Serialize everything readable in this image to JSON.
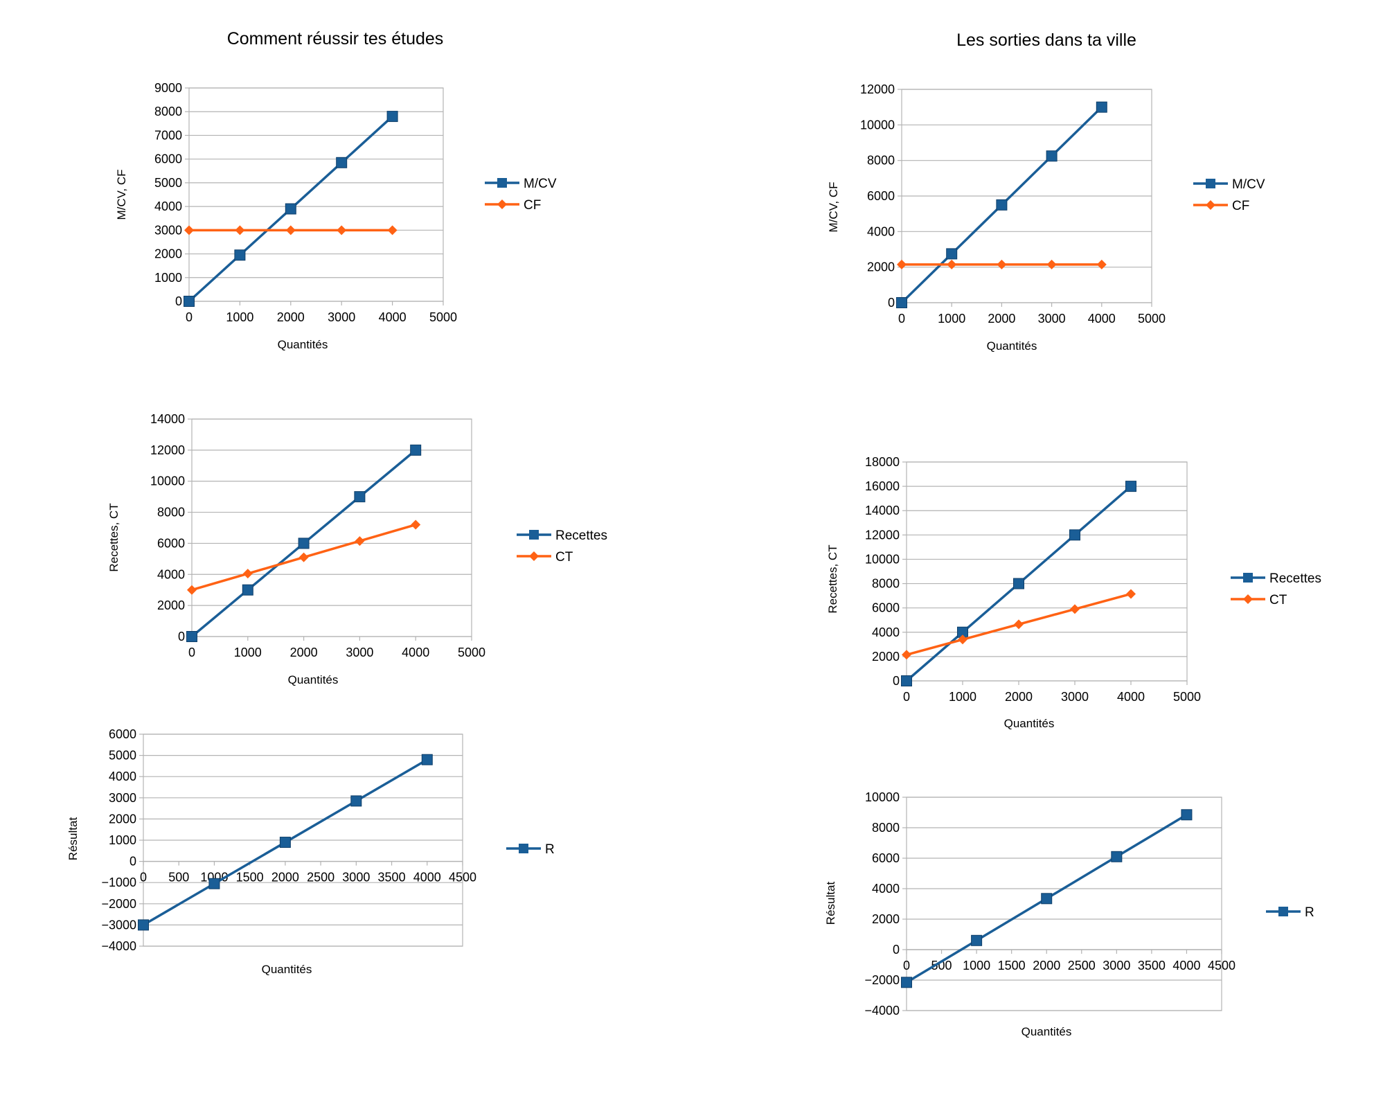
{
  "titles": {
    "left": "Comment réussir tes études",
    "right": "Les sorties dans ta ville"
  },
  "colors": {
    "blue": "#1a5e97",
    "orange": "#ff6214",
    "grid": "#b3b3b3"
  },
  "chart_data": [
    {
      "type": "line",
      "title": "",
      "xlabel": "Quantités",
      "ylabel": "M/CV, CF",
      "xlim": [
        0,
        5000
      ],
      "ylim": [
        0,
        9000
      ],
      "x_ticks": [
        0,
        1000,
        2000,
        3000,
        4000,
        5000
      ],
      "y_ticks": [
        0,
        1000,
        2000,
        3000,
        4000,
        5000,
        6000,
        7000,
        8000,
        9000
      ],
      "grid": true,
      "legend_position": "right",
      "x": [
        0,
        1000,
        2000,
        3000,
        4000
      ],
      "series": [
        {
          "name": "M/CV",
          "values": [
            0,
            1950,
            3900,
            5850,
            7800
          ],
          "color": "#1a5e97",
          "marker": "square"
        },
        {
          "name": "CF",
          "values": [
            3000,
            3000,
            3000,
            3000,
            3000
          ],
          "color": "#ff6214",
          "marker": "diamond"
        }
      ]
    },
    {
      "type": "line",
      "title": "",
      "xlabel": "Quantités",
      "ylabel": "M/CV, CF",
      "xlim": [
        0,
        5000
      ],
      "ylim": [
        0,
        12000
      ],
      "x_ticks": [
        0,
        1000,
        2000,
        3000,
        4000,
        5000
      ],
      "y_ticks": [
        0,
        2000,
        4000,
        6000,
        8000,
        10000,
        12000
      ],
      "grid": true,
      "legend_position": "right",
      "x": [
        0,
        1000,
        2000,
        3000,
        4000
      ],
      "series": [
        {
          "name": "M/CV",
          "values": [
            0,
            2750,
            5500,
            8250,
            11000
          ],
          "color": "#1a5e97",
          "marker": "square"
        },
        {
          "name": "CF",
          "values": [
            2150,
            2150,
            2150,
            2150,
            2150
          ],
          "color": "#ff6214",
          "marker": "diamond"
        }
      ]
    },
    {
      "type": "line",
      "title": "",
      "xlabel": "Quantités",
      "ylabel": "Recettes, CT",
      "xlim": [
        0,
        5000
      ],
      "ylim": [
        0,
        14000
      ],
      "x_ticks": [
        0,
        1000,
        2000,
        3000,
        4000,
        5000
      ],
      "y_ticks": [
        0,
        2000,
        4000,
        6000,
        8000,
        10000,
        12000,
        14000
      ],
      "grid": true,
      "legend_position": "right",
      "x": [
        0,
        1000,
        2000,
        3000,
        4000
      ],
      "series": [
        {
          "name": "Recettes",
          "values": [
            0,
            3000,
            6000,
            9000,
            12000
          ],
          "color": "#1a5e97",
          "marker": "square"
        },
        {
          "name": "CT",
          "values": [
            3000,
            4050,
            5100,
            6150,
            7200
          ],
          "color": "#ff6214",
          "marker": "diamond"
        }
      ]
    },
    {
      "type": "line",
      "title": "",
      "xlabel": "Quantités",
      "ylabel": "Recettes, CT",
      "xlim": [
        0,
        5000
      ],
      "ylim": [
        0,
        18000
      ],
      "x_ticks": [
        0,
        1000,
        2000,
        3000,
        4000,
        5000
      ],
      "y_ticks": [
        0,
        2000,
        4000,
        6000,
        8000,
        10000,
        12000,
        14000,
        16000,
        18000
      ],
      "grid": true,
      "legend_position": "right",
      "x": [
        0,
        1000,
        2000,
        3000,
        4000
      ],
      "series": [
        {
          "name": "Recettes",
          "values": [
            0,
            4000,
            8000,
            12000,
            16000
          ],
          "color": "#1a5e97",
          "marker": "square"
        },
        {
          "name": "CT",
          "values": [
            2150,
            3400,
            4650,
            5900,
            7150
          ],
          "color": "#ff6214",
          "marker": "diamond"
        }
      ]
    },
    {
      "type": "line",
      "title": "",
      "xlabel": "Quantités",
      "ylabel": "Résultat",
      "xlim": [
        0,
        4500
      ],
      "ylim": [
        -4000,
        6000
      ],
      "x_ticks": [
        0,
        500,
        1000,
        1500,
        2000,
        2500,
        3000,
        3500,
        4000,
        4500
      ],
      "y_ticks": [
        -4000,
        -3000,
        -2000,
        -1000,
        0,
        1000,
        2000,
        3000,
        4000,
        5000,
        6000
      ],
      "grid": true,
      "legend_position": "right",
      "x": [
        0,
        1000,
        2000,
        3000,
        4000
      ],
      "series": [
        {
          "name": "R",
          "values": [
            -3000,
            -1050,
            900,
            2850,
            4800
          ],
          "color": "#1a5e97",
          "marker": "square"
        }
      ]
    },
    {
      "type": "line",
      "title": "",
      "xlabel": "Quantités",
      "ylabel": "Résultat",
      "xlim": [
        0,
        4500
      ],
      "ylim": [
        -4000,
        10000
      ],
      "x_ticks": [
        0,
        500,
        1000,
        1500,
        2000,
        2500,
        3000,
        3500,
        4000,
        4500
      ],
      "y_ticks": [
        -4000,
        -2000,
        0,
        2000,
        4000,
        6000,
        8000,
        10000
      ],
      "grid": true,
      "legend_position": "right",
      "x": [
        0,
        1000,
        2000,
        3000,
        4000
      ],
      "series": [
        {
          "name": "R",
          "values": [
            -2150,
            600,
            3350,
            6100,
            8850
          ],
          "color": "#1a5e97",
          "marker": "square"
        }
      ]
    }
  ]
}
